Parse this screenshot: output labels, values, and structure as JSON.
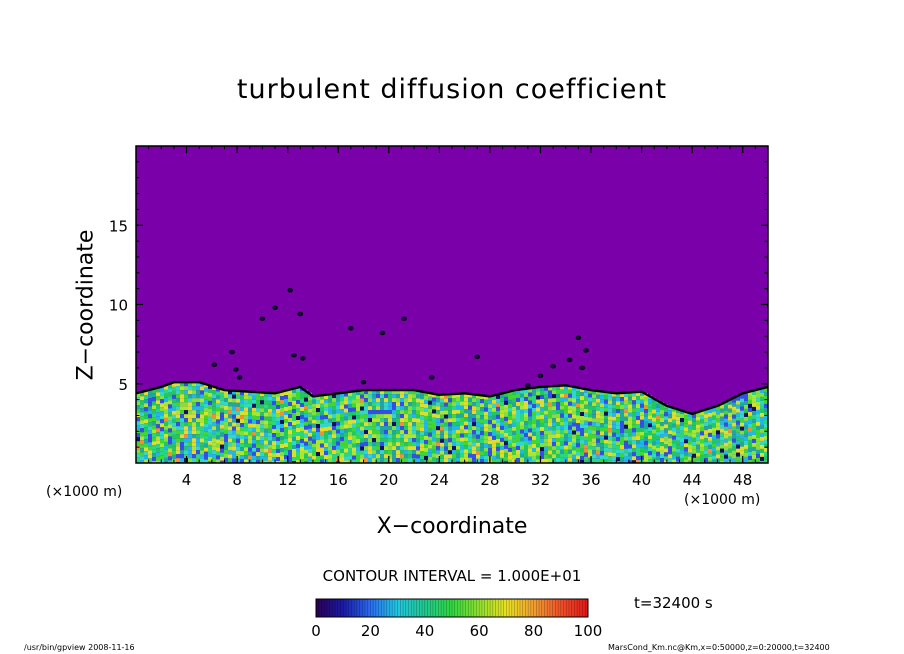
{
  "chart_data": {
    "type": "heatmap",
    "title": "turbulent diffusion coefficient",
    "xlabel": "X−coordinate",
    "ylabel": "Z−coordinate",
    "x_unit": "(×1000 m)",
    "xlim": [
      0,
      50
    ],
    "ylim": [
      0,
      20
    ],
    "x_ticks": [
      "4",
      "8",
      "12",
      "16",
      "20",
      "24",
      "28",
      "32",
      "36",
      "40",
      "44",
      "48"
    ],
    "x_tick_values": [
      4,
      8,
      12,
      16,
      20,
      24,
      28,
      32,
      36,
      40,
      44,
      48
    ],
    "y_ticks": [
      "5",
      "10",
      "15"
    ],
    "y_tick_values": [
      5,
      10,
      15
    ],
    "colorbar": {
      "min": 0,
      "max": 100,
      "ticks": [
        "0",
        "20",
        "40",
        "60",
        "80",
        "100"
      ],
      "tick_values": [
        0,
        20,
        40,
        60,
        80,
        100
      ]
    },
    "contour_interval": "CONTOUR INTERVAL = 1.000E+01",
    "time": "t=32400 s",
    "mixed_layer_top": [
      [
        0,
        4.4
      ],
      [
        2,
        4.8
      ],
      [
        3,
        5.1
      ],
      [
        5,
        5.1
      ],
      [
        7,
        4.6
      ],
      [
        9,
        4.5
      ],
      [
        11,
        4.4
      ],
      [
        13,
        4.8
      ],
      [
        14,
        4.2
      ],
      [
        16,
        4.4
      ],
      [
        18,
        4.6
      ],
      [
        22,
        4.6
      ],
      [
        24,
        4.3
      ],
      [
        26,
        4.4
      ],
      [
        28,
        4.2
      ],
      [
        30,
        4.6
      ],
      [
        32,
        4.8
      ],
      [
        34,
        4.9
      ],
      [
        36,
        4.6
      ],
      [
        38,
        4.4
      ],
      [
        40,
        4.5
      ],
      [
        42,
        3.6
      ],
      [
        44,
        3.1
      ],
      [
        46,
        3.6
      ],
      [
        48,
        4.4
      ],
      [
        50,
        4.8
      ]
    ]
  },
  "footer": {
    "left": "/usr/bin/gpview   2008-11-16",
    "right": "MarsCond_Km.nc@Km,x=0:50000,z=0:20000,t=32400"
  }
}
